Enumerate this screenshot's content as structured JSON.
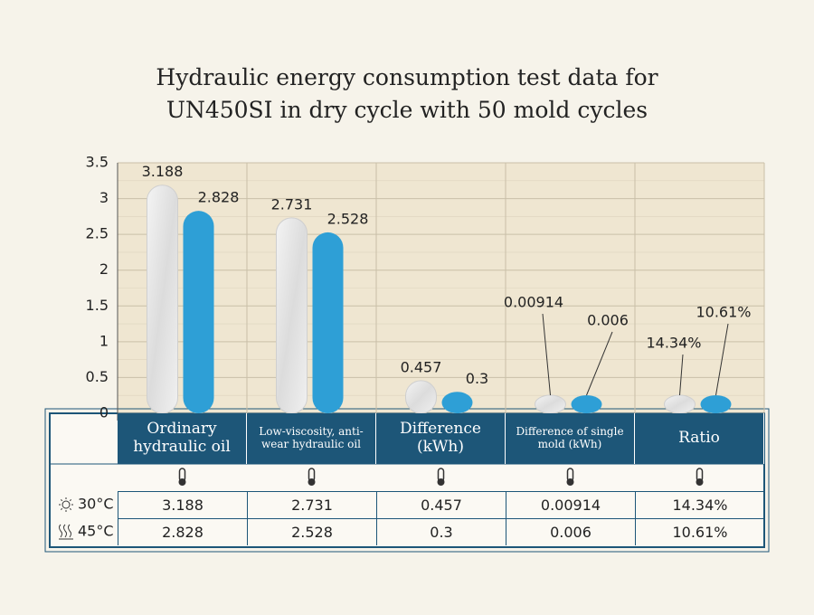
{
  "chart_data": {
    "type": "bar",
    "title": "Hydraulic energy consumption test data for UN450SI in dry cycle with 50 mold cycles",
    "categories": [
      "Ordinary hydraulic oil",
      "Low-viscosity, anti-wear hydraulic oil",
      "Difference (kWh)",
      "Difference of single mold (kWh)",
      "Ratio"
    ],
    "series": [
      {
        "name": "30°C",
        "color": "#e6e6e6",
        "values": [
          3.188,
          2.731,
          0.457,
          0.00914,
          0.1434
        ],
        "value_labels": [
          "3.188",
          "2.731",
          "0.457",
          "0.00914",
          "14.34%"
        ]
      },
      {
        "name": "45°C",
        "color": "#2e9fd6",
        "values": [
          2.828,
          2.528,
          0.3,
          0.006,
          0.1061
        ],
        "value_labels": [
          "2.828",
          "2.528",
          "0.3",
          "0.006",
          "10.61%"
        ]
      }
    ],
    "ylim": [
      0,
      3.5
    ],
    "yticks": [
      0,
      0.5,
      1,
      1.5,
      2,
      2.5,
      3,
      3.5
    ],
    "grid": true
  }
}
